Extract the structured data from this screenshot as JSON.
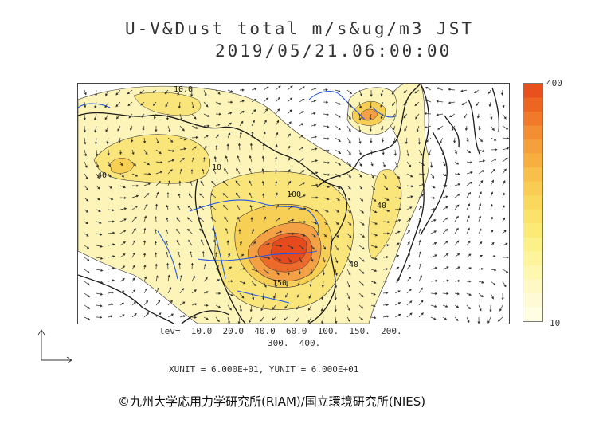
{
  "title": "U-V&Dust total m/s&ug/m3 JST",
  "timestamp": "2019/05/21.06:00:00",
  "colorbar": {
    "max_label": "400",
    "min_label": "10",
    "colors": [
      "#e8501e",
      "#ec6622",
      "#f07a2a",
      "#f38e32",
      "#f5a03a",
      "#f7b040",
      "#f8c04a",
      "#f9cc54",
      "#fad85e",
      "#fbe268",
      "#fcea76",
      "#fcf088",
      "#fdf49c",
      "#fdf7b0",
      "#fef9c4",
      "#fefbd4",
      "#fffde2"
    ]
  },
  "map": {
    "contour_labels": [
      "10.0",
      "10",
      "40",
      "100",
      "150",
      "40",
      "40"
    ],
    "colors": {
      "light": "#fcf4b8",
      "yellow": "#fae57a",
      "gold": "#f8cf55",
      "orange": "#f4a044",
      "deep_orange": "#ec6a2a",
      "red": "#e64a1c",
      "river": "#1d57e6",
      "coast": "#1a1a1a"
    }
  },
  "levels_line1": "lev=  10.0  20.0  40.0  60.0  100.  150.  200.",
  "levels_line2": "300.  400.",
  "units": "XUNIT = 6.000E+01, YUNIT = 6.000E+01",
  "copyright": "©九州大学応用力学研究所(RIAM)/国立環境研究所(NIES)"
}
